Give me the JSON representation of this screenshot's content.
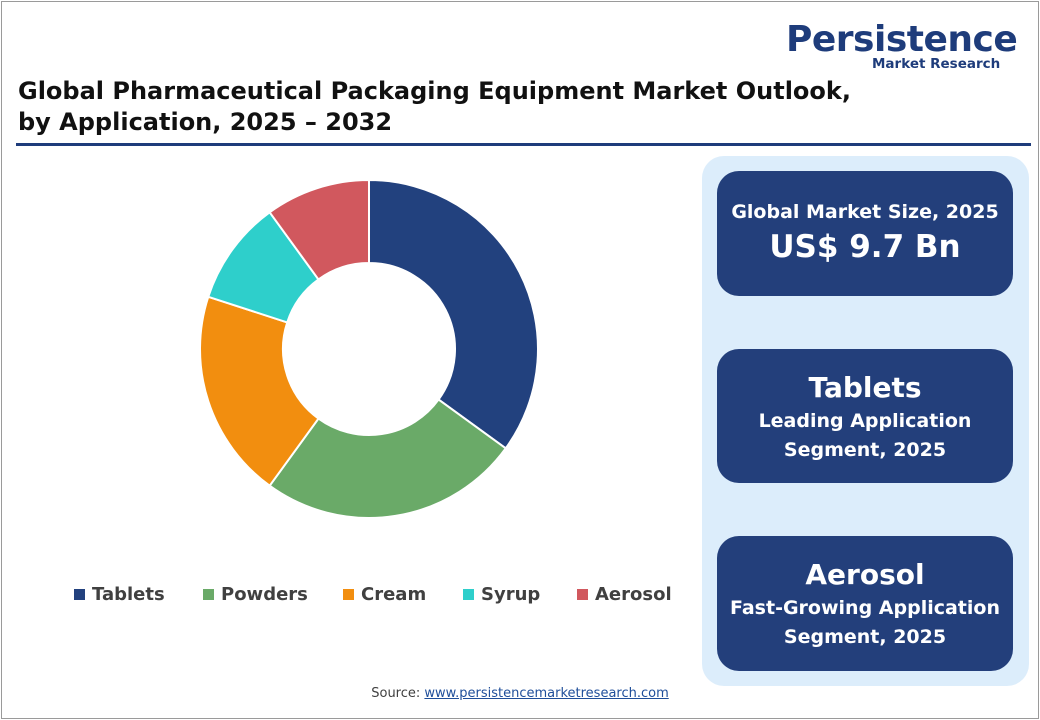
{
  "brand": {
    "name": "Persistence",
    "sub": "Market Research"
  },
  "title_line1": "Global Pharmaceutical Packaging Equipment Market Outlook,",
  "title_line2": "by Application, 2025 – 2032",
  "cards": {
    "market_size": {
      "label": "Global Market Size, 2025",
      "value": "US$ 9.7 Bn"
    },
    "leading": {
      "name": "Tablets",
      "line1": "Leading Application",
      "line2": "Segment, 2025"
    },
    "fastest": {
      "name": "Aerosol",
      "line1": "Fast-Growing Application",
      "line2": "Segment, 2025"
    }
  },
  "source": {
    "label": "Source:",
    "url_text": "www.persistencemarketresearch.com"
  },
  "colors": {
    "brand": "#1e3c7b",
    "panel": "#dcedfb",
    "card": "#233f7b"
  },
  "chart_data": {
    "type": "pie",
    "donut": true,
    "categories": [
      "Tablets",
      "Powders",
      "Cream",
      "Syrup",
      "Aerosol"
    ],
    "values": [
      35,
      25,
      20,
      10,
      10
    ],
    "colors": [
      "#22417e",
      "#6aaa68",
      "#f28e0f",
      "#2ecfcb",
      "#d1585e"
    ],
    "legend": "bottom",
    "title": ""
  }
}
